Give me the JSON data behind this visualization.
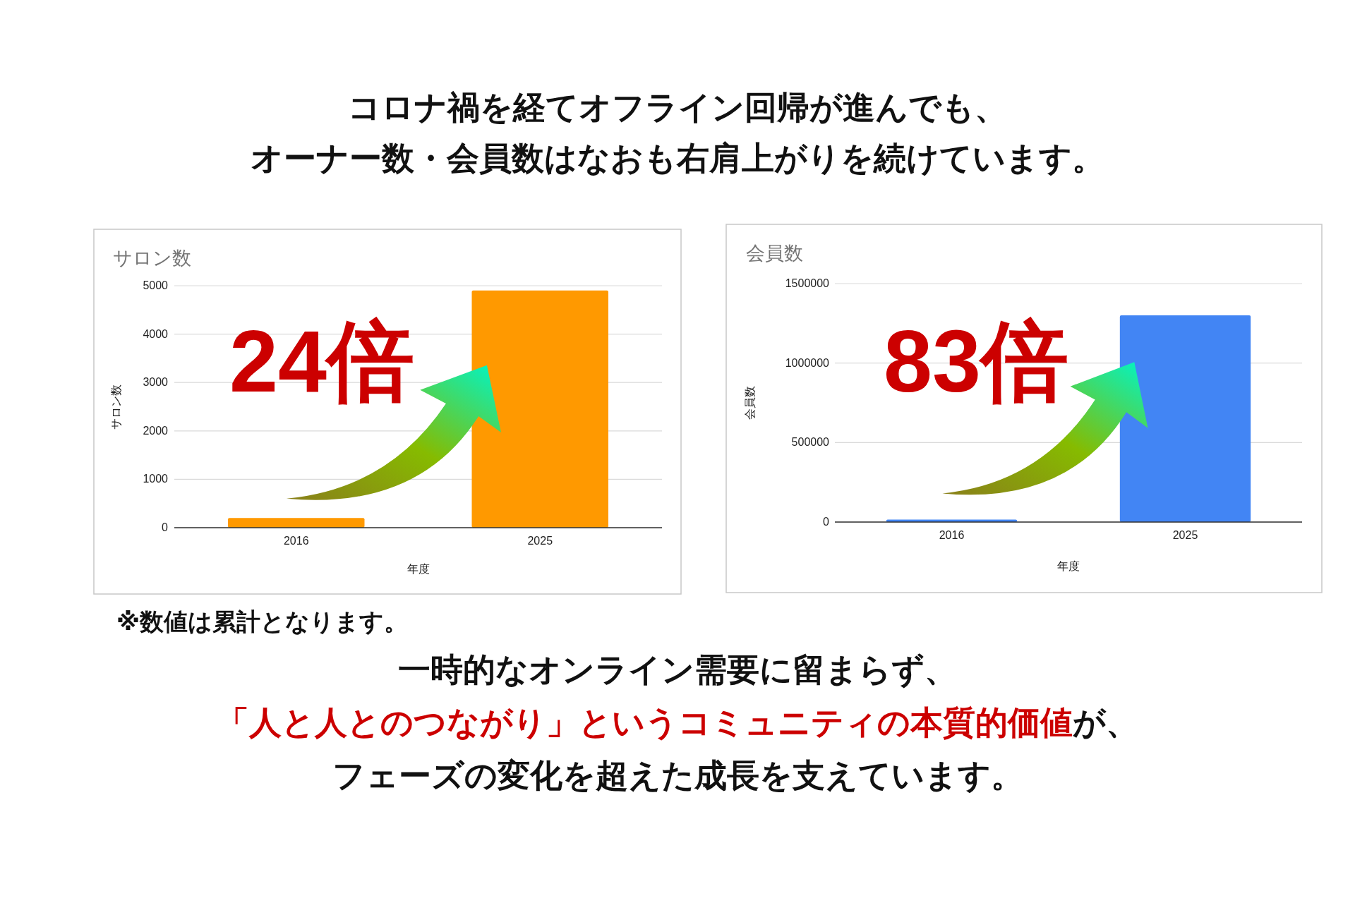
{
  "chart_data": [
    {
      "type": "bar",
      "title": "サロン数",
      "ylabel": "サロン数",
      "xlabel": "年度",
      "categories": [
        "2016",
        "2025"
      ],
      "values": [
        200,
        4900
      ],
      "colors": [
        "#ff9900",
        "#ff9900"
      ],
      "ylim": [
        0,
        5000
      ],
      "yticks": [
        0,
        1000,
        2000,
        3000,
        4000,
        5000
      ],
      "grid": "y",
      "annotations": [
        "24倍"
      ]
    },
    {
      "type": "bar",
      "title": "会員数",
      "ylabel": "会員数",
      "xlabel": "年度",
      "categories": [
        "2016",
        "2025"
      ],
      "values": [
        15000,
        1300000
      ],
      "colors": [
        "#4285f4",
        "#4285f4"
      ],
      "ylim": [
        0,
        1500000
      ],
      "yticks": [
        0,
        500000,
        1000000,
        1500000
      ],
      "grid": "y",
      "annotations": [
        "83倍"
      ]
    },
    {
      "type": "other",
      "annotations": [
        "コロナ禍を経てオフライン回帰が進んでも、",
        "オーナー数・会員数はなおも右肩上がりを続けています。",
        "※数値は累計となります。",
        "一時的なオンライン需要に留まらず、",
        "「人と人とのつながり」というコミュニティの本質的価値",
        "が、",
        "フェーズの変化を超えた成長を支えています。"
      ],
      "colors": [
        "#111111",
        "#111111",
        "#111111",
        "#111111",
        "#cc0000",
        "#111111",
        "#111111"
      ]
    }
  ]
}
